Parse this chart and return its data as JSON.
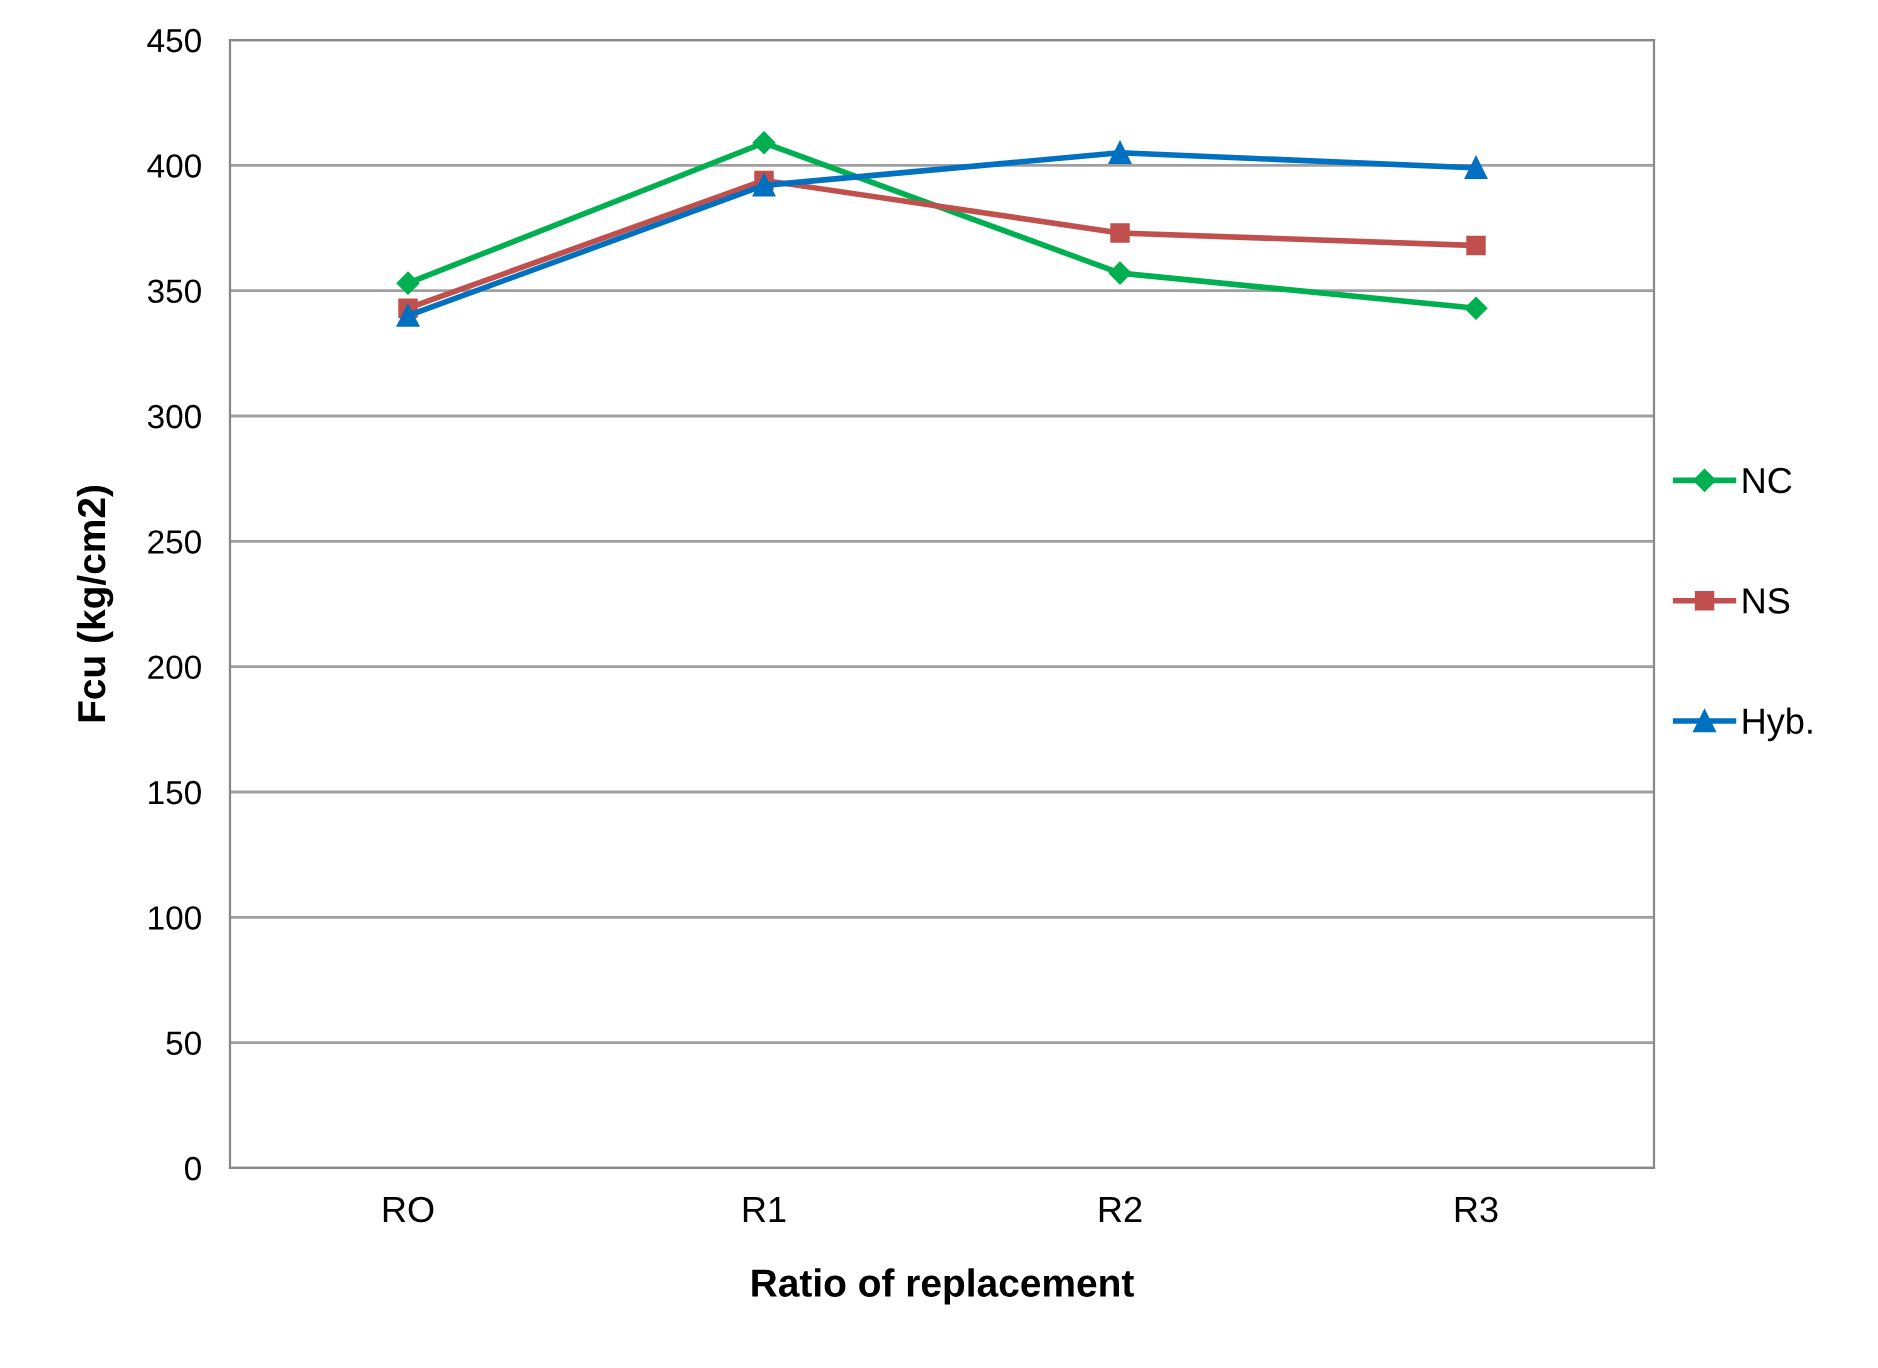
{
  "chart_data": {
    "type": "line",
    "xlabel": "Ratio of replacement",
    "ylabel": "Fcu (kg/cm2)",
    "categories": [
      "RO",
      "R1",
      "R2",
      "R3"
    ],
    "series": [
      {
        "name": "NC",
        "color": "#00b050",
        "marker": "diamond",
        "values": [
          353,
          409,
          357,
          343
        ]
      },
      {
        "name": "NS",
        "color": "#c0504d",
        "marker": "square",
        "values": [
          343,
          394,
          373,
          368
        ]
      },
      {
        "name": "Hyb.",
        "color": "#0070c0",
        "marker": "triangle",
        "values": [
          340,
          392,
          405,
          399
        ]
      }
    ],
    "ylim": [
      0,
      450
    ],
    "yticks": [
      0,
      50,
      100,
      150,
      200,
      250,
      300,
      350,
      400,
      450
    ],
    "grid": "y",
    "legend": "right"
  }
}
